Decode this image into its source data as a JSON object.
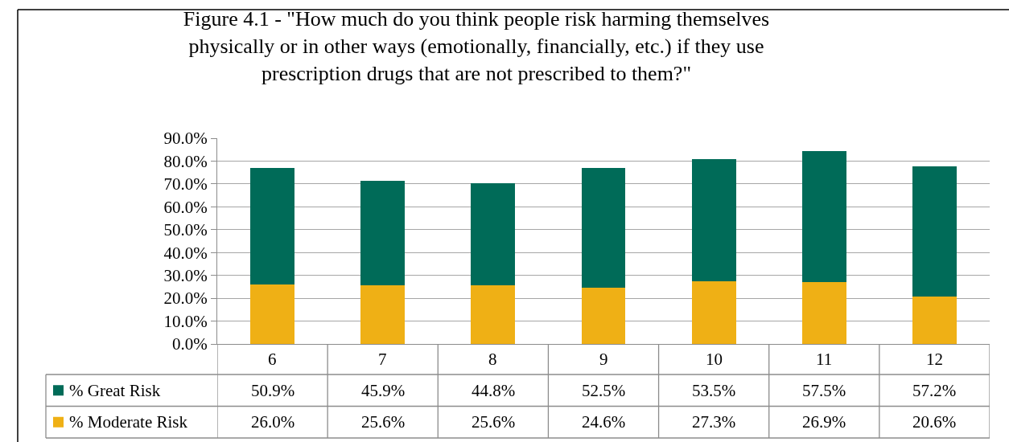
{
  "chart_data": {
    "type": "bar",
    "stacked": true,
    "title": "Figure 4.1 - \"How much do you think people risk harming themselves\nphysically or in other ways (emotionally, financially, etc.) if they use\nprescription drugs that are not prescribed to them?\"",
    "categories": [
      "6",
      "7",
      "8",
      "9",
      "10",
      "11",
      "12"
    ],
    "series": [
      {
        "name": "% Moderate Risk",
        "color": "#efb015",
        "values": [
          26.0,
          25.6,
          25.6,
          24.6,
          27.3,
          26.9,
          20.6
        ],
        "value_labels": [
          "26.0%",
          "25.6%",
          "25.6%",
          "24.6%",
          "27.3%",
          "26.9%",
          "20.6%"
        ]
      },
      {
        "name": "% Great Risk",
        "color": "#006b58",
        "values": [
          50.9,
          45.9,
          44.8,
          52.5,
          53.5,
          57.5,
          57.2
        ],
        "value_labels": [
          "50.9%",
          "45.9%",
          "44.8%",
          "52.5%",
          "53.5%",
          "57.5%",
          "57.2%"
        ]
      }
    ],
    "ylim": [
      0,
      90
    ],
    "yticks": [
      {
        "value": 0,
        "label": "0.0%"
      },
      {
        "value": 10,
        "label": "10.0%"
      },
      {
        "value": 20,
        "label": "20.0%"
      },
      {
        "value": 30,
        "label": "30.0%"
      },
      {
        "value": 40,
        "label": "40.0%"
      },
      {
        "value": 50,
        "label": "50.0%"
      },
      {
        "value": 60,
        "label": "60.0%"
      },
      {
        "value": 70,
        "label": "70.0%"
      },
      {
        "value": 80,
        "label": "80.0%"
      },
      {
        "value": 90,
        "label": "90.0%"
      }
    ],
    "grid": "y",
    "legend": "bottom left"
  }
}
